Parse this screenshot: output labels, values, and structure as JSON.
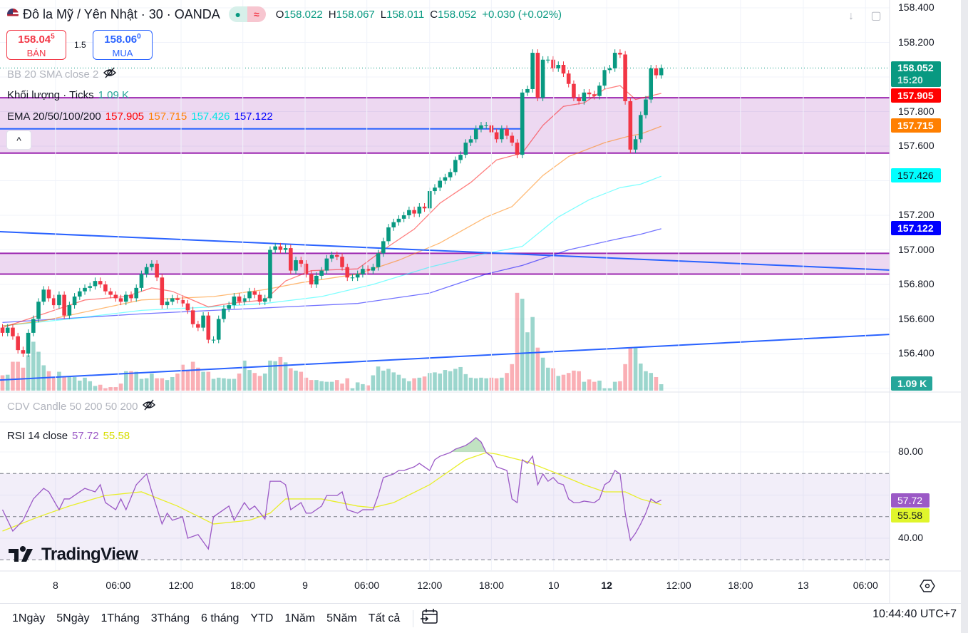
{
  "header": {
    "title": "Đô la Mỹ / Yên Nhật · 30 · OANDA",
    "flag_icon": "us-jp-flag-icon",
    "status_badges": [
      "market-open-dot-icon",
      "delayed-data-icon"
    ],
    "ohlc": [
      {
        "key": "O",
        "value": "158.022"
      },
      {
        "key": "H",
        "value": "158.067"
      },
      {
        "key": "L",
        "value": "158.011"
      },
      {
        "key": "C",
        "value": "158.052"
      }
    ],
    "change": "+0.030 (+0.02%)"
  },
  "trade": {
    "sell_price": "158.04",
    "sell_sup": "5",
    "sell_label": "BÁN",
    "spread": "1.5",
    "buy_price": "158.06",
    "buy_sup": "0",
    "buy_label": "MUA"
  },
  "legend": {
    "bb": "BB 20 SMA close 2",
    "volume_label": "Khối lượng · Ticks",
    "volume_value": "1.09 K",
    "ema_label": "EMA 20/50/100/200",
    "ema_values": [
      "157.905",
      "157.715",
      "157.426",
      "157.122"
    ],
    "cdv": "CDV Candle 50 200 50 200",
    "rsi_label": "RSI 14 close",
    "rsi_values": [
      "57.72",
      "55.58"
    ],
    "collapse": "^"
  },
  "price_axis": {
    "ticks": [
      "158.400",
      "158.200",
      "157.800",
      "157.600",
      "157.200",
      "157.000",
      "156.800",
      "156.600",
      "156.400"
    ],
    "last_price": "158.052",
    "countdown": "15:20",
    "ema_tags": [
      "157.905",
      "157.715",
      "157.426",
      "157.122"
    ],
    "volume_tag": "1.09 K"
  },
  "rsi_axis": {
    "ticks": [
      "80.00",
      "40.00"
    ],
    "tags": [
      "57.72",
      "55.58"
    ]
  },
  "time_axis": [
    {
      "label": "8",
      "bar": 10.3
    },
    {
      "label": "06:00",
      "bar": 22.5
    },
    {
      "label": "12:00",
      "bar": 34.7
    },
    {
      "label": "18:00",
      "bar": 46.7
    },
    {
      "label": "9",
      "bar": 58.8
    },
    {
      "label": "06:00",
      "bar": 70.8
    },
    {
      "label": "12:00",
      "bar": 83
    },
    {
      "label": "18:00",
      "bar": 95
    },
    {
      "label": "10",
      "bar": 107.1
    },
    {
      "label": "12",
      "bar": 117.4
    },
    {
      "label": "12:00",
      "bar": 131.4
    },
    {
      "label": "18:00",
      "bar": 143.4
    },
    {
      "label": "13",
      "bar": 155.6
    },
    {
      "label": "06:00",
      "bar": 167.7
    }
  ],
  "bottom_bar": {
    "ranges": [
      "1Ngày",
      "5Ngày",
      "1Tháng",
      "3Tháng",
      "6 tháng",
      "YTD",
      "1Năm",
      "5Năm",
      "Tất cả"
    ],
    "goto_icon": "calendar-goto-icon",
    "clock": "10:44:40 UTC+7"
  },
  "watermark": "TradingView",
  "colors": {
    "up": "#089981",
    "down": "#f23645",
    "ema20": "#ff0000",
    "ema50": "#ff7f00",
    "ema100": "#00ffff",
    "ema200": "#0000ff",
    "zone": "#9c27b0",
    "trendline": "#2962ff",
    "rsi": "#9b59c6",
    "rsi_ma": "#e8ef2a"
  },
  "chart_data": {
    "type": "candlestick",
    "symbol": "USDJPY 30m",
    "ylim": [
      156.2,
      158.4
    ],
    "close": [
      156.52,
      156.55,
      156.5,
      156.42,
      156.4,
      156.52,
      156.6,
      156.7,
      156.77,
      156.72,
      156.68,
      156.74,
      156.62,
      156.68,
      156.73,
      156.76,
      156.78,
      156.79,
      156.82,
      156.8,
      156.76,
      156.74,
      156.72,
      156.7,
      156.74,
      156.72,
      156.78,
      156.86,
      156.9,
      156.92,
      156.84,
      156.68,
      156.7,
      156.72,
      156.71,
      156.69,
      156.65,
      156.57,
      156.55,
      156.62,
      156.48,
      156.48,
      156.6,
      156.66,
      156.68,
      156.73,
      156.7,
      156.72,
      156.76,
      156.74,
      156.7,
      156.72,
      157.0,
      157.02,
      157.0,
      157.01,
      156.88,
      156.94,
      156.92,
      156.86,
      156.8,
      156.85,
      156.88,
      156.95,
      156.97,
      156.96,
      156.9,
      156.84,
      156.84,
      156.86,
      156.89,
      156.88,
      156.9,
      156.98,
      157.05,
      157.13,
      157.16,
      157.18,
      157.2,
      157.23,
      157.21,
      157.25,
      157.24,
      157.34,
      157.36,
      157.4,
      157.42,
      157.45,
      157.52,
      157.55,
      157.62,
      157.64,
      157.7,
      157.72,
      157.72,
      157.68,
      157.64,
      157.7,
      157.66,
      157.62,
      157.55,
      157.91,
      157.93,
      158.14,
      157.88,
      158.1,
      158.1,
      158.05,
      158.07,
      158.02,
      157.96,
      157.88,
      157.86,
      157.91,
      157.9,
      157.89,
      157.95,
      158.04,
      158.05,
      158.14,
      158.13,
      157.86,
      157.58,
      157.64,
      157.78,
      157.87,
      158.05,
      158.01,
      158.052
    ],
    "volume_k": [
      2.6,
      2.7,
      4.9,
      4.9,
      3.9,
      6.0,
      8.3,
      6.6,
      4.3,
      3.3,
      2.2,
      3.2,
      2.3,
      2.3,
      2.3,
      1.7,
      2.2,
      1.6,
      0.8,
      1.0,
      0.4,
      0.6,
      0.6,
      1.2,
      3.3,
      3.3,
      3.2,
      2.0,
      2.1,
      2.9,
      2.1,
      2.1,
      1.8,
      2.3,
      2.9,
      4.4,
      3.5,
      4.9,
      3.9,
      3.2,
      3.2,
      2.0,
      2.2,
      2.1,
      2.0,
      2.0,
      2.9,
      5.1,
      3.5,
      3.0,
      2.5,
      2.9,
      5.1,
      5.0,
      5.7,
      4.8,
      3.8,
      3.4,
      3.2,
      2.2,
      1.8,
      1.8,
      1.6,
      1.5,
      1.5,
      1.8,
      1.2,
      2.1,
      0.4,
      1.4,
      1.1,
      0.9,
      2.6,
      4.1,
      3.4,
      3.7,
      3.1,
      2.7,
      2.1,
      1.6,
      2.1,
      2.2,
      2.4,
      3.0,
      3.1,
      2.9,
      3.5,
      3.3,
      3.7,
      4.0,
      2.8,
      2.2,
      2.1,
      2.2,
      2.1,
      2.2,
      2.1,
      2.2,
      3.0,
      4.5,
      16.6,
      15.6,
      9.9,
      12.5,
      7.3,
      5.6,
      3.9,
      3.8,
      2.5,
      2.7,
      3.0,
      3.4,
      3.3,
      1.5,
      1.9,
      1.5,
      1.7,
      0.4,
      0.4,
      1.5,
      1.6,
      4.5,
      7.3,
      7.3,
      4.6,
      3.3,
      3.0,
      2.3,
      1.09
    ],
    "ema20": [
      [
        0,
        156.55
      ],
      [
        8,
        156.63
      ],
      [
        16,
        156.71
      ],
      [
        24,
        156.73
      ],
      [
        29,
        156.78
      ],
      [
        33,
        156.76
      ],
      [
        40,
        156.67
      ],
      [
        44,
        156.69
      ],
      [
        51,
        156.71
      ],
      [
        55,
        156.82
      ],
      [
        60,
        156.88
      ],
      [
        69,
        156.89
      ],
      [
        74,
        157.0
      ],
      [
        80,
        157.12
      ],
      [
        85,
        157.27
      ],
      [
        91,
        157.39
      ],
      [
        96,
        157.52
      ],
      [
        101,
        157.56
      ],
      [
        105,
        157.72
      ],
      [
        109,
        157.83
      ],
      [
        113,
        157.85
      ],
      [
        117,
        157.93
      ],
      [
        120,
        157.95
      ],
      [
        123,
        157.87
      ],
      [
        128,
        157.905
      ]
    ],
    "ema50": [
      [
        0,
        156.56
      ],
      [
        8,
        156.59
      ],
      [
        27,
        156.71
      ],
      [
        41,
        156.73
      ],
      [
        51,
        156.77
      ],
      [
        58,
        156.81
      ],
      [
        69,
        156.86
      ],
      [
        77,
        156.94
      ],
      [
        85,
        157.04
      ],
      [
        94,
        157.19
      ],
      [
        99,
        157.25
      ],
      [
        105,
        157.43
      ],
      [
        110,
        157.54
      ],
      [
        117,
        157.62
      ],
      [
        122,
        157.66
      ],
      [
        124,
        157.67
      ],
      [
        128,
        157.715
      ]
    ],
    "ema100": [
      [
        0,
        156.56
      ],
      [
        13,
        156.6
      ],
      [
        27,
        156.65
      ],
      [
        41,
        156.67
      ],
      [
        51,
        156.69
      ],
      [
        62,
        156.73
      ],
      [
        72,
        156.8
      ],
      [
        83,
        156.9
      ],
      [
        94,
        156.98
      ],
      [
        101,
        157.02
      ],
      [
        108,
        157.19
      ],
      [
        114,
        157.29
      ],
      [
        120,
        157.36
      ],
      [
        124,
        157.38
      ],
      [
        128,
        157.426
      ]
    ],
    "ema200": [
      [
        0,
        156.58
      ],
      [
        27,
        156.63
      ],
      [
        41,
        156.65
      ],
      [
        55,
        156.67
      ],
      [
        69,
        156.69
      ],
      [
        83,
        156.75
      ],
      [
        94,
        156.86
      ],
      [
        101,
        156.91
      ],
      [
        110,
        157.0
      ],
      [
        119,
        157.06
      ],
      [
        124,
        157.09
      ],
      [
        128,
        157.122
      ]
    ],
    "rsi": [
      [
        0,
        53.2
      ],
      [
        2,
        43.3
      ],
      [
        4,
        48.3
      ],
      [
        6,
        58.2
      ],
      [
        8,
        63.1
      ],
      [
        9,
        61.5
      ],
      [
        11,
        53.2
      ],
      [
        12,
        58.2
      ],
      [
        13,
        58.2
      ],
      [
        15,
        61.5
      ],
      [
        16,
        63.1
      ],
      [
        18,
        61.5
      ],
      [
        19,
        64.8
      ],
      [
        20,
        56.5
      ],
      [
        22,
        53.2
      ],
      [
        23,
        58.2
      ],
      [
        24,
        53.2
      ],
      [
        26,
        64.8
      ],
      [
        28,
        69.8
      ],
      [
        29,
        61.5
      ],
      [
        31,
        46.6
      ],
      [
        32,
        51.6
      ],
      [
        33,
        48.3
      ],
      [
        35,
        49.9
      ],
      [
        36,
        40.0
      ],
      [
        38,
        41.7
      ],
      [
        40,
        35.0
      ],
      [
        41,
        49.9
      ],
      [
        42,
        51.6
      ],
      [
        44,
        54.9
      ],
      [
        45,
        48.3
      ],
      [
        47,
        56.5
      ],
      [
        48,
        53.2
      ],
      [
        49,
        54.9
      ],
      [
        51,
        48.9
      ],
      [
        52,
        66.4
      ],
      [
        54,
        66.4
      ],
      [
        55,
        64.8
      ],
      [
        56,
        53.2
      ],
      [
        58,
        56.5
      ],
      [
        59,
        51.6
      ],
      [
        60,
        51.6
      ],
      [
        62,
        54.9
      ],
      [
        63,
        59.8
      ],
      [
        65,
        59.8
      ],
      [
        66,
        61.5
      ],
      [
        67,
        53.2
      ],
      [
        69,
        51.6
      ],
      [
        70,
        53.2
      ],
      [
        72,
        53.2
      ],
      [
        73,
        59.8
      ],
      [
        74,
        68.1
      ],
      [
        76,
        69.8
      ],
      [
        77,
        71.4
      ],
      [
        78,
        71.4
      ],
      [
        80,
        73.1
      ],
      [
        81,
        74.7
      ],
      [
        83,
        71.4
      ],
      [
        84,
        76.4
      ],
      [
        85,
        78.0
      ],
      [
        87,
        79.7
      ],
      [
        88,
        81.3
      ],
      [
        90,
        83.0
      ],
      [
        91,
        84.6
      ],
      [
        92,
        86.6
      ],
      [
        93,
        84.6
      ],
      [
        94,
        79.7
      ],
      [
        95,
        78.0
      ],
      [
        96,
        73.1
      ],
      [
        98,
        71.4
      ],
      [
        99,
        58.2
      ],
      [
        100,
        56.5
      ],
      [
        101,
        76.4
      ],
      [
        102,
        74.7
      ],
      [
        103,
        78.0
      ],
      [
        104,
        64.8
      ],
      [
        105,
        69.8
      ],
      [
        106,
        66.4
      ],
      [
        107,
        68.1
      ],
      [
        108,
        65.5
      ],
      [
        109,
        64.8
      ],
      [
        110,
        58.2
      ],
      [
        111,
        56.5
      ],
      [
        112,
        56.5
      ],
      [
        113,
        57.2
      ],
      [
        115,
        56.5
      ],
      [
        116,
        58.2
      ],
      [
        117,
        64.8
      ],
      [
        118,
        66.4
      ],
      [
        119,
        71.4
      ],
      [
        120,
        69.8
      ],
      [
        121,
        51.6
      ],
      [
        122,
        39.0
      ],
      [
        123,
        42.3
      ],
      [
        124,
        46.6
      ],
      [
        125,
        51.6
      ],
      [
        126,
        58.2
      ],
      [
        127,
        56.5
      ],
      [
        128,
        57.72
      ]
    ],
    "rsi_ma": [
      [
        0,
        43.3
      ],
      [
        7,
        49.9
      ],
      [
        13,
        54.9
      ],
      [
        20,
        59.8
      ],
      [
        27,
        61.5
      ],
      [
        34,
        54.9
      ],
      [
        41,
        46.6
      ],
      [
        48,
        48.3
      ],
      [
        52,
        51.6
      ],
      [
        55,
        58.2
      ],
      [
        62,
        58.2
      ],
      [
        69,
        54.9
      ],
      [
        72,
        54.2
      ],
      [
        76,
        56.5
      ],
      [
        83,
        64.8
      ],
      [
        90,
        76.4
      ],
      [
        94,
        79.7
      ],
      [
        96,
        79.0
      ],
      [
        102,
        75.4
      ],
      [
        108,
        69.8
      ],
      [
        113,
        64.8
      ],
      [
        117,
        61.5
      ],
      [
        121,
        61.5
      ],
      [
        124,
        58.2
      ],
      [
        128,
        55.58
      ]
    ],
    "rsi_levels": [
      70,
      50,
      30
    ],
    "zones": [
      [
        157.56,
        157.88
      ],
      [
        156.86,
        156.98
      ]
    ],
    "trendlines": [
      {
        "from": [
          -0.5,
          157.105
        ],
        "to": [
          172.4,
          156.883
        ]
      },
      {
        "from": [
          -0.5,
          156.247
        ],
        "to": [
          172.4,
          156.511
        ]
      }
    ],
    "hline": {
      "price": 157.7,
      "to_bar": 101
    }
  }
}
